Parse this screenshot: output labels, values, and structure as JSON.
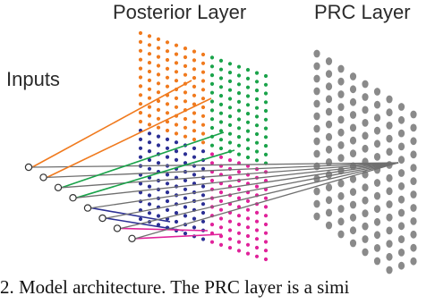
{
  "diagram": {
    "titles": {
      "posterior": "Posterior Layer",
      "prc": "PRC Layer",
      "inputs": "Inputs"
    },
    "caption": "2. Model architecture. The PRC layer is a simi",
    "colors": {
      "orange": "#f07a1e",
      "green": "#1aa34a",
      "blue": "#2b2f94",
      "magenta": "#e0229a",
      "gray": "#8a8a8a",
      "line_gray": "#6f6f6f",
      "text": "#2a2a2a"
    },
    "input_count": 8,
    "posterior_quadrants": [
      "orange",
      "green",
      "blue",
      "magenta"
    ],
    "input_connections": [
      {
        "input": 0,
        "color": "orange"
      },
      {
        "input": 0,
        "color": "line_gray"
      },
      {
        "input": 1,
        "color": "orange"
      },
      {
        "input": 1,
        "color": "line_gray"
      },
      {
        "input": 2,
        "color": "green"
      },
      {
        "input": 2,
        "color": "line_gray"
      },
      {
        "input": 3,
        "color": "green"
      },
      {
        "input": 3,
        "color": "line_gray"
      },
      {
        "input": 4,
        "color": "blue"
      },
      {
        "input": 4,
        "color": "line_gray"
      },
      {
        "input": 5,
        "color": "blue"
      },
      {
        "input": 5,
        "color": "line_gray"
      },
      {
        "input": 6,
        "color": "magenta"
      },
      {
        "input": 6,
        "color": "line_gray"
      },
      {
        "input": 7,
        "color": "magenta"
      },
      {
        "input": 7,
        "color": "line_gray"
      }
    ]
  }
}
